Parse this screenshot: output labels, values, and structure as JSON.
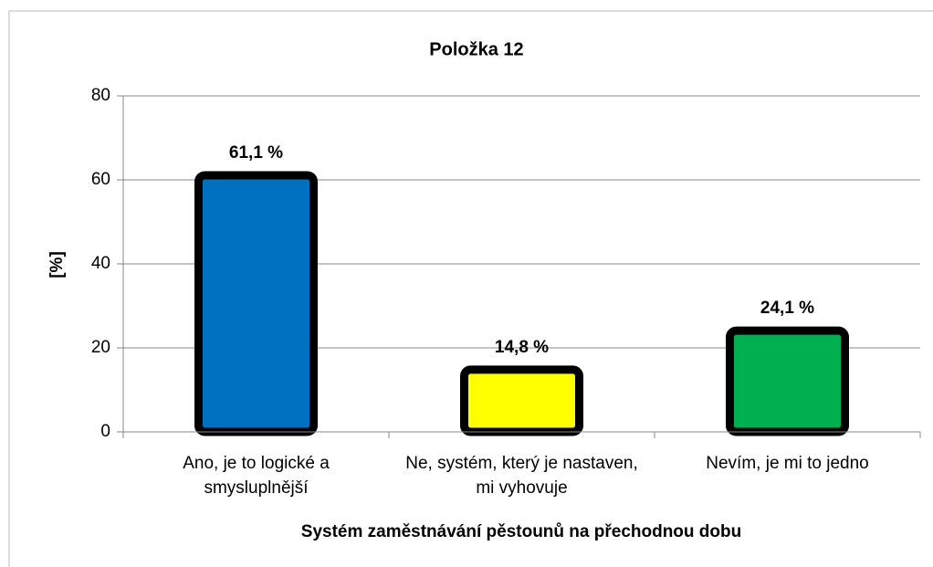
{
  "chart_data": {
    "type": "bar",
    "title": "Položka 12",
    "x_label": "Systém zaměstnávání pěstounů na přechodnou dobu",
    "y_label": "[%]",
    "categories": [
      "Ano, je to logické a smysluplnější",
      "Ne, systém, který je nastaven, mi vyhovuje",
      "Nevím, je mi to jedno"
    ],
    "values": [
      61.1,
      14.8,
      24.1
    ],
    "value_labels": [
      "61,1 %",
      "14,8 %",
      "24,1 %"
    ],
    "colors": [
      "#0070c0",
      "#ffff00",
      "#00b050"
    ],
    "ylim": [
      0,
      80
    ],
    "yticks": [
      0,
      20,
      40,
      60,
      80
    ],
    "grid": true
  }
}
